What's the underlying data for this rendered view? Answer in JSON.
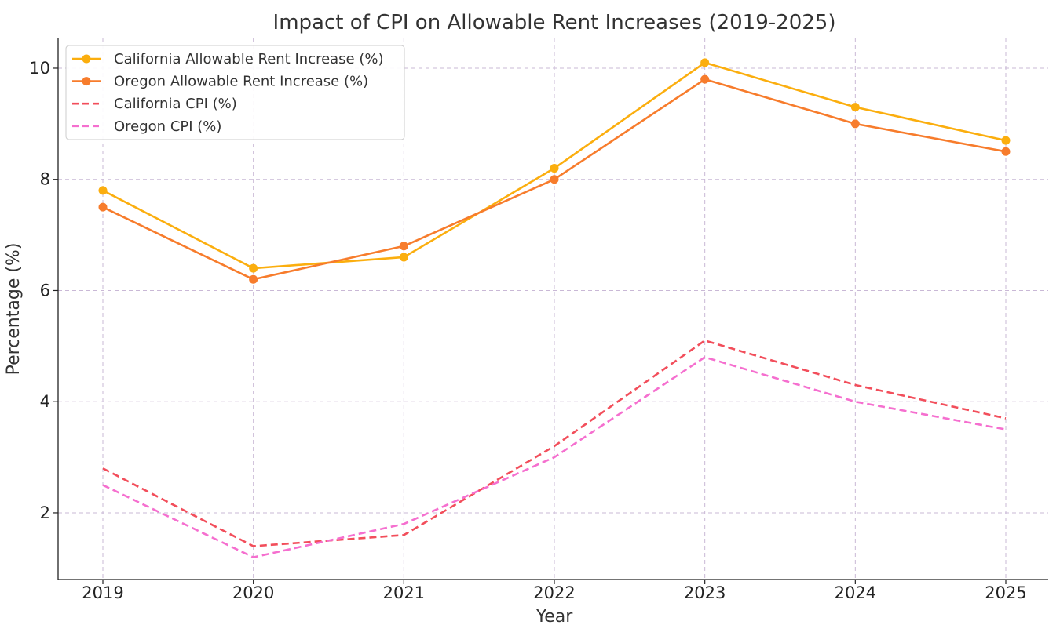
{
  "chart_data": {
    "type": "line",
    "title": "Impact of CPI on Allowable Rent Increases (2019-2025)",
    "xlabel": "Year",
    "ylabel": "Percentage (%)",
    "categories": [
      "2019",
      "2020",
      "2021",
      "2022",
      "2023",
      "2024",
      "2025"
    ],
    "ylim": [
      0.8,
      10.55
    ],
    "yticks": [
      2,
      4,
      6,
      8,
      10
    ],
    "grid": true,
    "legend_position": "top-left",
    "series": [
      {
        "name": "California Allowable Rent Increase (%)",
        "values": [
          7.8,
          6.4,
          6.6,
          8.2,
          10.1,
          9.3,
          8.7
        ],
        "color": "#FBAE0E",
        "style": "solid",
        "marker": true
      },
      {
        "name": "Oregon Allowable Rent Increase (%)",
        "values": [
          7.5,
          6.2,
          6.8,
          8.0,
          9.8,
          9.0,
          8.5
        ],
        "color": "#F77C2C",
        "style": "solid",
        "marker": true
      },
      {
        "name": "California CPI (%)",
        "values": [
          2.8,
          1.4,
          1.6,
          3.2,
          5.1,
          4.3,
          3.7
        ],
        "color": "#F24E5B",
        "style": "dashed",
        "marker": false
      },
      {
        "name": "Oregon CPI (%)",
        "values": [
          2.5,
          1.2,
          1.8,
          3.0,
          4.8,
          4.0,
          3.5
        ],
        "color": "#F56FCF",
        "style": "dashed",
        "marker": false
      }
    ]
  }
}
